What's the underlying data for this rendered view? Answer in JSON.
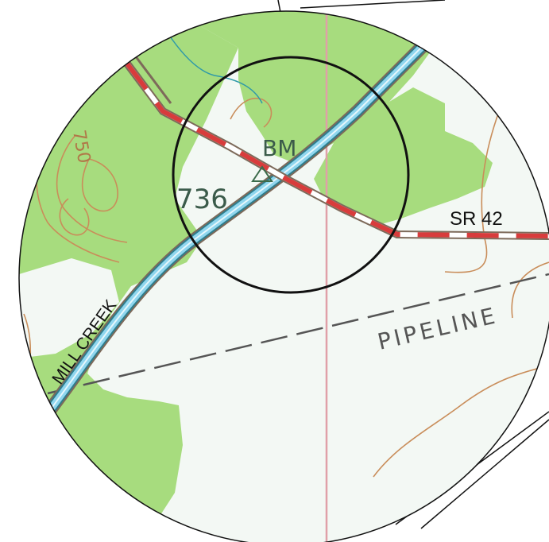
{
  "map": {
    "labels": {
      "benchmark": "BM",
      "elevation": "736",
      "contour": "750",
      "road": "SR 42",
      "creek": "MILL CREEK",
      "pipeline": "PIPELINE"
    },
    "colors": {
      "paper": "#f3f8f4",
      "vegetation": "#a7dc7e",
      "water": "#8fd6ee",
      "water_edge": "#2f7d8c",
      "road_red": "#d83c3c",
      "road_casing": "#7d6a5a",
      "contour": "#c98d5a",
      "section_line": "#e0a0a8",
      "pipeline": "#555555",
      "outline": "#111111"
    }
  }
}
